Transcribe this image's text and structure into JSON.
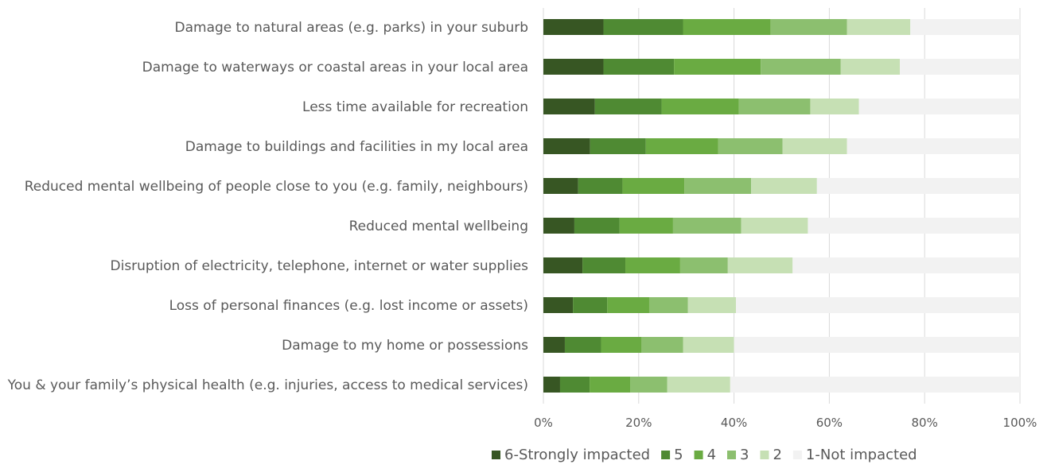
{
  "chart_data": {
    "type": "bar",
    "orientation": "horizontal",
    "stacked": "percent",
    "categories": [
      "Damage to natural areas (e.g. parks) in your suburb",
      "Damage to waterways or coastal areas in your local area",
      "Less time available for recreation",
      "Damage to buildings and facilities in my local area",
      "Reduced mental wellbeing of people close to you (e.g. family, neighbours)",
      "Reduced mental wellbeing",
      "Disruption of electricity, telephone, internet or water supplies",
      "Loss of personal finances (e.g. lost income or assets)",
      "Damage to my home or possessions",
      "You & your family’s physical health (e.g. injuries, access to medical services)"
    ],
    "series": [
      {
        "name": "6-Strongly impacted",
        "color": "#375623",
        "values": [
          12.6,
          12.6,
          10.8,
          9.8,
          7.3,
          6.5,
          8.2,
          6.2,
          4.5,
          3.5
        ]
      },
      {
        "name": "5",
        "color": "#4f8a33",
        "values": [
          16.7,
          14.8,
          14.0,
          11.7,
          9.3,
          9.5,
          9.0,
          7.2,
          7.6,
          6.2
        ]
      },
      {
        "name": "4",
        "color": "#6aab42",
        "values": [
          18.4,
          18.2,
          16.2,
          15.2,
          13.0,
          11.2,
          11.5,
          8.8,
          8.5,
          8.5
        ]
      },
      {
        "name": "3",
        "color": "#8cbf6f",
        "values": [
          16.0,
          16.8,
          15.0,
          13.5,
          14.0,
          14.3,
          10.0,
          8.1,
          8.7,
          7.8
        ]
      },
      {
        "name": "2",
        "color": "#c6e0b4",
        "values": [
          13.3,
          12.4,
          10.2,
          13.5,
          13.8,
          14.0,
          13.6,
          10.1,
          10.7,
          13.2
        ]
      },
      {
        "name": "1-Not impacted",
        "color": "#f2f2f2",
        "values": [
          23.0,
          25.2,
          33.8,
          36.3,
          42.6,
          44.5,
          47.7,
          59.6,
          60.0,
          60.8
        ]
      }
    ],
    "xlim": [
      0,
      100
    ],
    "x_ticks": [
      "0%",
      "20%",
      "40%",
      "60%",
      "80%",
      "100%"
    ],
    "grid": "vertical",
    "legend_position": "bottom"
  }
}
